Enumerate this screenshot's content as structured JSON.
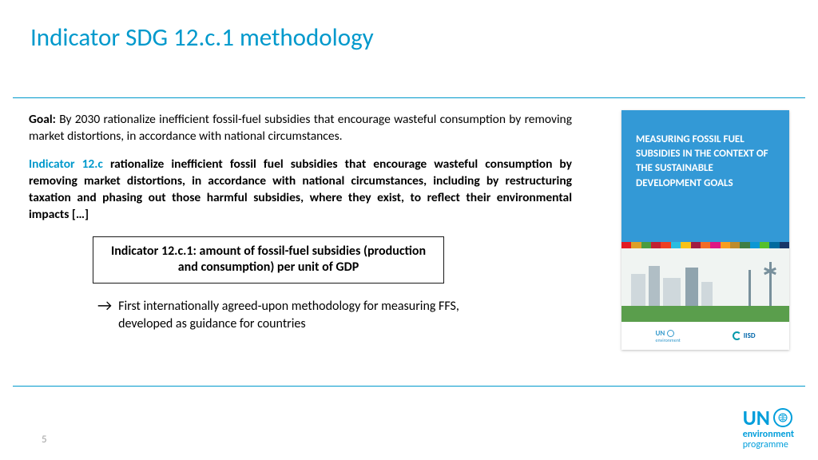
{
  "colors": {
    "title": "#0099cc",
    "hr": "#0099cc",
    "indicator_label": "#0099cc",
    "cover_bg": "#3399d6",
    "cover_ground": "#5a9e4c",
    "footer_blue": "#009edb",
    "stripes": [
      "#e31b23",
      "#dca029",
      "#4b9c3f",
      "#c21f32",
      "#ed3f24",
      "#28bde1",
      "#f9c218",
      "#a11c42",
      "#f36c25",
      "#de1683",
      "#f99d1e",
      "#bd8b2d",
      "#3f7e44",
      "#0b97d4",
      "#56c02d",
      "#006a9e",
      "#183668"
    ]
  },
  "title": "Indicator SDG 12.c.1 methodology",
  "goal": {
    "label": "Goal: ",
    "text": "By 2030 rationalize inefficient fossil-fuel subsidies that encourage wasteful consumption by removing market distortions, in accordance with national circumstances."
  },
  "indicator": {
    "label": "Indicator 12.c ",
    "text": "rationalize inefficient fossil fuel subsidies that encourage wasteful consumption by removing market distortions, in accordance with national circumstances, including by restructuring taxation and phasing out those harmful subsidies, where they exist, to reflect their environmental impacts […]"
  },
  "boxed": "Indicator 12.c.1: amount of fossil-fuel subsidies (production and consumption) per unit of GDP",
  "arrow_text": "First internationally agreed-upon methodology for measuring FFS, developed as guidance for countries",
  "cover_title": "MEASURING FOSSIL FUEL SUBSIDIES IN THE CONTEXT OF THE SUSTAINABLE DEVELOPMENT GOALS",
  "cover_logo1": "UN",
  "cover_logo1_sub": "environment",
  "cover_logo2": "IISD",
  "page_number": "5",
  "footer": {
    "un": "UN",
    "line1": "environment",
    "line2": "programme"
  }
}
